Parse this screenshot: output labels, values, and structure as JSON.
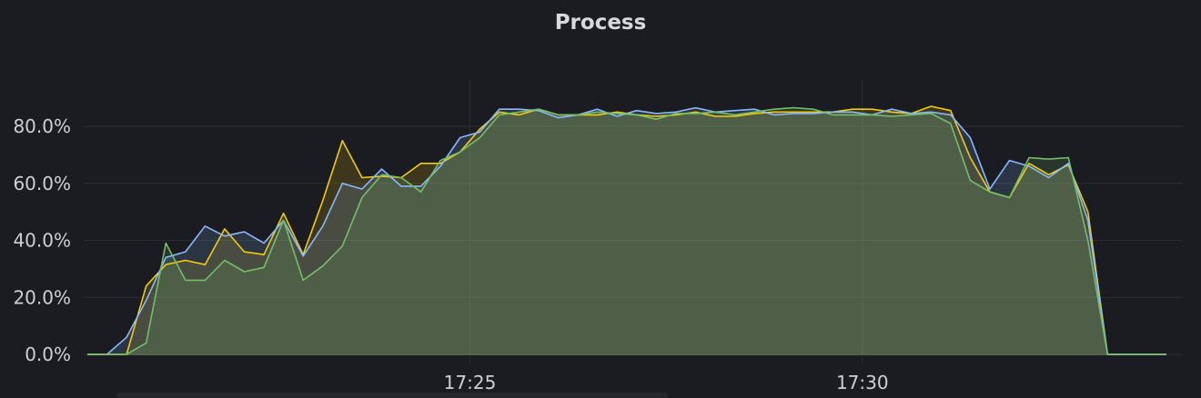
{
  "panel": {
    "title": "Process"
  },
  "chart_data": {
    "type": "area",
    "title": "Process",
    "ylim": [
      0,
      100
    ],
    "y_ticks": [
      "0.0%",
      "20.0%",
      "40.0%",
      "60.0%",
      "80.0%"
    ],
    "y_tick_values": [
      0,
      20,
      40,
      60,
      80
    ],
    "x_ticks": [
      "17:25",
      "17:30"
    ],
    "x_tick_values": [
      19.5,
      39.5
    ],
    "grid": true,
    "legend": "none",
    "x": [
      0,
      1,
      2,
      3,
      4,
      5,
      6,
      7,
      8,
      9,
      10,
      11,
      12,
      13,
      14,
      15,
      16,
      17,
      18,
      19,
      20,
      21,
      22,
      23,
      24,
      25,
      26,
      27,
      28,
      29,
      30,
      31,
      32,
      33,
      34,
      35,
      36,
      37,
      38,
      39,
      40,
      41,
      42,
      43,
      44,
      45,
      46,
      47,
      48,
      49,
      50,
      51,
      52,
      53,
      54,
      55
    ],
    "series": [
      {
        "color": "#f2cc0c",
        "values": [
          0,
          0,
          0,
          24,
          31.5,
          33,
          31.5,
          44,
          36,
          35,
          49.5,
          35,
          54,
          75,
          62,
          62.5,
          62,
          67,
          67,
          71,
          79,
          85,
          84,
          86,
          84,
          84,
          84,
          85,
          84,
          83.5,
          84,
          85,
          83.5,
          83.5,
          84.5,
          85,
          85,
          85,
          85,
          86,
          86,
          85,
          84.5,
          87,
          85.5,
          69,
          57,
          55,
          67,
          63,
          66.5,
          50,
          0,
          0,
          0,
          0
        ]
      },
      {
        "color": "#8ab8ff",
        "values": [
          0,
          0,
          6,
          19,
          34,
          36,
          45,
          41.5,
          43,
          39,
          47,
          34.5,
          45,
          60,
          58,
          65,
          59,
          59,
          66,
          76,
          78,
          86,
          86,
          85.5,
          83,
          84,
          86,
          83.5,
          85.5,
          84.5,
          85,
          86.5,
          85,
          85.5,
          86,
          84,
          84.5,
          84.5,
          85,
          85,
          84,
          86,
          84.5,
          85,
          84,
          76,
          58,
          68,
          66,
          62,
          67,
          47,
          0,
          0,
          0,
          0
        ]
      },
      {
        "color": "#73bf69",
        "values": [
          0,
          0,
          0,
          4,
          39,
          26,
          26,
          33,
          29,
          30.5,
          47,
          26,
          31,
          38,
          55,
          63,
          62,
          57,
          68,
          71,
          76,
          84,
          85,
          86,
          84,
          84,
          85,
          84.5,
          84,
          82.5,
          84.5,
          84.5,
          85,
          84,
          85,
          86,
          86.5,
          86,
          84,
          84,
          84,
          83.5,
          84,
          84.5,
          81,
          61,
          57,
          55,
          69,
          68.5,
          69,
          40,
          0,
          0,
          0,
          0
        ]
      }
    ]
  }
}
